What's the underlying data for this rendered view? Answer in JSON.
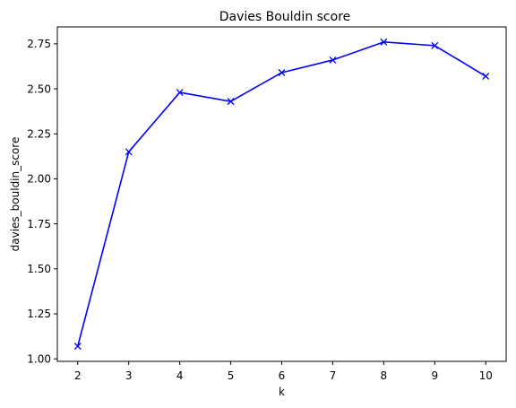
{
  "chart_data": {
    "type": "line",
    "title": "Davies Bouldin score",
    "xlabel": "k",
    "ylabel": "davies_bouldin_score",
    "x": [
      2,
      3,
      4,
      5,
      6,
      7,
      8,
      9,
      10
    ],
    "series": [
      {
        "values": [
          1.07,
          2.15,
          2.48,
          2.43,
          2.59,
          2.66,
          2.76,
          2.74,
          2.57
        ],
        "color": "#0000ff",
        "marker": "x"
      }
    ],
    "xticks": [
      "2",
      "3",
      "4",
      "5",
      "6",
      "7",
      "8",
      "9",
      "10"
    ],
    "yticks": [
      "1.00",
      "1.25",
      "1.50",
      "1.75",
      "2.00",
      "2.25",
      "2.50",
      "2.75"
    ],
    "xlim": [
      1.6,
      10.4
    ],
    "ylim": [
      0.986,
      2.844
    ],
    "grid": false,
    "legend": false
  }
}
